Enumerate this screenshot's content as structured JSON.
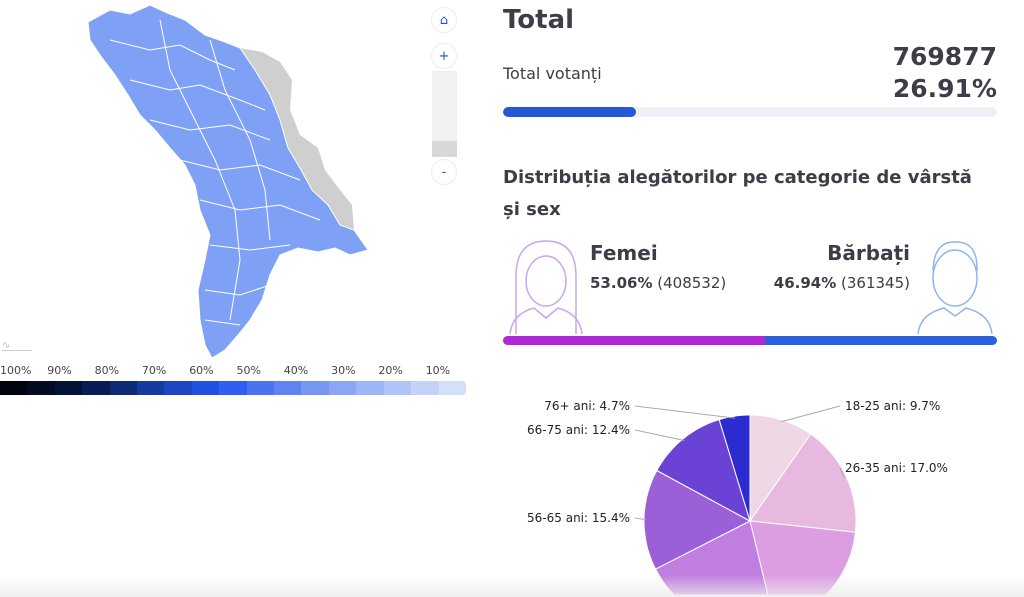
{
  "map": {
    "controls": {
      "home_icon": "home-icon",
      "zoom_in": "+",
      "zoom_out": "-"
    },
    "legend": {
      "labels": [
        "100%",
        "90%",
        "80%",
        "70%",
        "60%",
        "50%",
        "40%",
        "30%",
        "20%",
        "10%"
      ],
      "colors": [
        "#02040f",
        "#040a24",
        "#061338",
        "#0a1d52",
        "#0e2a74",
        "#153aa0",
        "#1d46c4",
        "#2250e0",
        "#2f5ef0",
        "#4b73f0",
        "#5f84f2",
        "#7696f4",
        "#8aa6f5",
        "#9db6f6",
        "#b1c4f7",
        "#c4d2f8",
        "#d5dffa"
      ]
    },
    "fill_color": "#7fa1f5",
    "excluded_color": "#cfcfcf"
  },
  "total": {
    "title": "Total",
    "voters_label": "Total votanți",
    "voters_count": "769877",
    "turnout_pct": "26.91%",
    "turnout_value": 26.91,
    "bar_color": "#2557d6"
  },
  "distribution": {
    "title": "Distribuția alegătorilor pe categorie de vârstă și sex",
    "female": {
      "label": "Femei",
      "pct": "53.06%",
      "count": "(408532)",
      "share": 53.06,
      "color": "#b026d8",
      "icon": "woman-avatar-icon"
    },
    "male": {
      "label": "Bărbați",
      "pct": "46.94%",
      "count": "(361345)",
      "share": 46.94,
      "color": "#2a5fde",
      "icon": "man-avatar-icon"
    }
  },
  "chart_data": {
    "type": "pie",
    "slices": [
      {
        "label": "18-25 ani: 9.7%",
        "value": 9.7,
        "color": "#efd7e6"
      },
      {
        "label": "26-35 ani: 17.0%",
        "value": 17.0,
        "color": "#e8b9de"
      },
      {
        "label": "",
        "value": 20.6,
        "color": "#dc9de2"
      },
      {
        "label": "",
        "value": 20.2,
        "color": "#c07ee0"
      },
      {
        "label": "56-65 ani: 15.4%",
        "value": 15.4,
        "color": "#9b5fd8"
      },
      {
        "label": "66-75 ani: 12.4%",
        "value": 12.4,
        "color": "#6a43d6"
      },
      {
        "label": "76+ ani: 4.7%",
        "value": 4.7,
        "color": "#2b2bd0"
      }
    ]
  }
}
